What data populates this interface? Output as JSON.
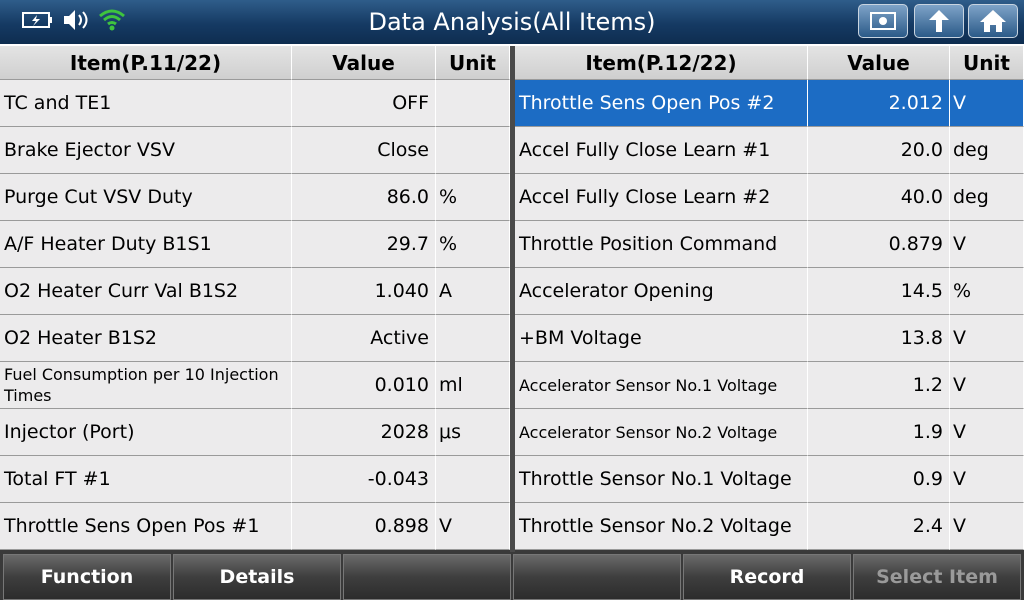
{
  "header": {
    "title": "Data Analysis(All Items)"
  },
  "tables": [
    {
      "columns": [
        "Item(P.11/22)",
        "Value",
        "Unit"
      ],
      "rows": [
        {
          "item": "TC and TE1",
          "value": "OFF"
        },
        {
          "item": "Brake Ejector VSV",
          "value": "Close"
        },
        {
          "item": "Purge Cut VSV Duty",
          "value": "86.0",
          "unit": "%"
        },
        {
          "item": "A/F Heater Duty B1S1",
          "value": "29.7",
          "unit": "%"
        },
        {
          "item": "O2 Heater Curr Val B1S2",
          "value": "1.040",
          "unit": "A"
        },
        {
          "item": "O2 Heater B1S2",
          "value": "Active"
        },
        {
          "item": "Fuel Consumption per 10 Injection Times",
          "value": "0.010",
          "unit": "ml"
        },
        {
          "item": "Injector (Port)",
          "value": "2028",
          "unit": "μs"
        },
        {
          "item": "Total FT #1",
          "value": "-0.043"
        },
        {
          "item": "Throttle Sens Open Pos #1",
          "value": "0.898",
          "unit": "V"
        }
      ]
    },
    {
      "columns": [
        "Item(P.12/22)",
        "Value",
        "Unit"
      ],
      "rows": [
        {
          "item": "Throttle Sens Open Pos #2",
          "value": "2.012",
          "unit": "V",
          "selected": true
        },
        {
          "item": "Accel Fully Close Learn #1",
          "value": "20.0",
          "unit": "deg"
        },
        {
          "item": "Accel Fully Close Learn #2",
          "value": "40.0",
          "unit": "deg"
        },
        {
          "item": "Throttle Position Command",
          "value": "0.879",
          "unit": "V"
        },
        {
          "item": "Accelerator Opening",
          "value": "14.5",
          "unit": "%"
        },
        {
          "item": "+BM Voltage",
          "value": "13.8",
          "unit": "V"
        },
        {
          "item": "Accelerator Sensor No.1 Voltage",
          "value": "1.2",
          "unit": "V"
        },
        {
          "item": "Accelerator Sensor No.2 Voltage",
          "value": "1.9",
          "unit": "V"
        },
        {
          "item": "Throttle Sensor No.1 Voltage",
          "value": "0.9",
          "unit": "V"
        },
        {
          "item": "Throttle Sensor No.2 Voltage",
          "value": "2.4",
          "unit": "V"
        }
      ]
    }
  ],
  "footer": {
    "buttons": [
      "Function",
      "Details",
      null,
      null,
      "Record",
      "Select Item"
    ]
  }
}
